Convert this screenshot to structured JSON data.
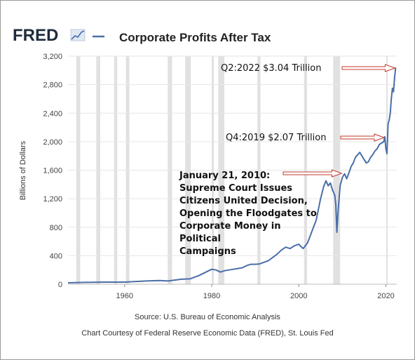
{
  "header": {
    "logo_text": "FRED",
    "title": "Corporate Profits After Tax"
  },
  "footer": {
    "source": "Source: U.S. Bureau of Economic Analysis",
    "courtesy": "Chart Courtesy of Federal Reserve Economic Data (FRED), St. Louis Fed"
  },
  "colors": {
    "series": "#4a6ea8",
    "recession": "#e1e1e1",
    "grid": "#e6e6e6",
    "arrow": "#c0392b",
    "logo": "#1f2d3d"
  },
  "chart_data": {
    "type": "line",
    "title": "Corporate Profits After Tax",
    "xlabel": "",
    "ylabel": "Billions of Dollars",
    "xlim": [
      1947,
      2022.5
    ],
    "ylim": [
      0,
      3200
    ],
    "y_ticks": [
      0,
      400,
      800,
      1200,
      1600,
      2000,
      2400,
      2800,
      3200
    ],
    "y_tick_labels": [
      "0",
      "400",
      "800",
      "1,200",
      "1,600",
      "2,000",
      "2,400",
      "2,800",
      "3,200"
    ],
    "x_ticks": [
      1960,
      1980,
      2000,
      2020
    ],
    "x_tick_labels": [
      "1960",
      "1980",
      "2000",
      "2020"
    ],
    "grid": true,
    "recessions": [
      [
        1948.9,
        1949.8
      ],
      [
        1953.5,
        1954.4
      ],
      [
        1957.6,
        1958.3
      ],
      [
        1960.3,
        1961.1
      ],
      [
        1969.9,
        1970.9
      ],
      [
        1973.9,
        1975.2
      ],
      [
        1980.0,
        1980.5
      ],
      [
        1981.5,
        1982.9
      ],
      [
        1990.5,
        1991.2
      ],
      [
        2001.2,
        2001.9
      ],
      [
        2007.9,
        2009.5
      ],
      [
        2020.1,
        2020.4
      ]
    ],
    "series": [
      {
        "x": [
          1947,
          1950,
          1955,
          1960,
          1965,
          1968,
          1970,
          1973,
          1975,
          1977,
          1978,
          1979,
          1980,
          1981,
          1982,
          1983,
          1985,
          1987,
          1988,
          1989,
          1990,
          1991,
          1993,
          1995,
          1996,
          1997,
          1998,
          1999,
          2000,
          2001,
          2002,
          2003,
          2004,
          2005,
          2005.75,
          2006.25,
          2006.75,
          2007.25,
          2007.75,
          2008.25,
          2008.5,
          2008.75,
          2009.0,
          2009.25,
          2009.5,
          2010.0,
          2010.5,
          2011.0,
          2011.5,
          2012.0,
          2012.5,
          2013.0,
          2014.0,
          2014.5,
          2015.0,
          2015.5,
          2016.0,
          2016.5,
          2017.0,
          2017.5,
          2018.0,
          2018.5,
          2019.0,
          2019.5,
          2019.75,
          2020.0,
          2020.25,
          2020.5,
          2020.75,
          2021.0,
          2021.25,
          2021.5,
          2021.75,
          2022.0,
          2022.25
        ],
        "y": [
          20,
          25,
          30,
          30,
          45,
          52,
          45,
          70,
          75,
          120,
          150,
          180,
          210,
          200,
          170,
          190,
          210,
          230,
          260,
          280,
          280,
          285,
          330,
          420,
          480,
          520,
          500,
          540,
          560,
          500,
          580,
          740,
          900,
          1200,
          1380,
          1450,
          1380,
          1420,
          1320,
          1250,
          1120,
          730,
          1000,
          1200,
          1380,
          1500,
          1550,
          1480,
          1560,
          1650,
          1700,
          1780,
          1850,
          1800,
          1750,
          1700,
          1720,
          1780,
          1820,
          1870,
          1900,
          1960,
          1980,
          2000,
          2070,
          1900,
          1830,
          2250,
          2300,
          2400,
          2600,
          2750,
          2700,
          2900,
          3040
        ]
      }
    ],
    "annotations": [
      {
        "id": "q2-2022",
        "text": "Q2:2022  $3.04 Trillion",
        "x": 2022.25,
        "y": 3040
      },
      {
        "id": "q4-2019",
        "text": "Q4:2019 $2.07 Trillion",
        "x": 2019.75,
        "y": 2070
      },
      {
        "id": "citizens-united",
        "lines": [
          "January 21, 2010:",
          "Supreme Court Issues",
          "Citizens United Decision,",
          "Opening the Floodgates to",
          "Corporate Money in",
          "Political",
          "Campaigns"
        ],
        "x": 2010.0,
        "y": 1550
      }
    ]
  }
}
